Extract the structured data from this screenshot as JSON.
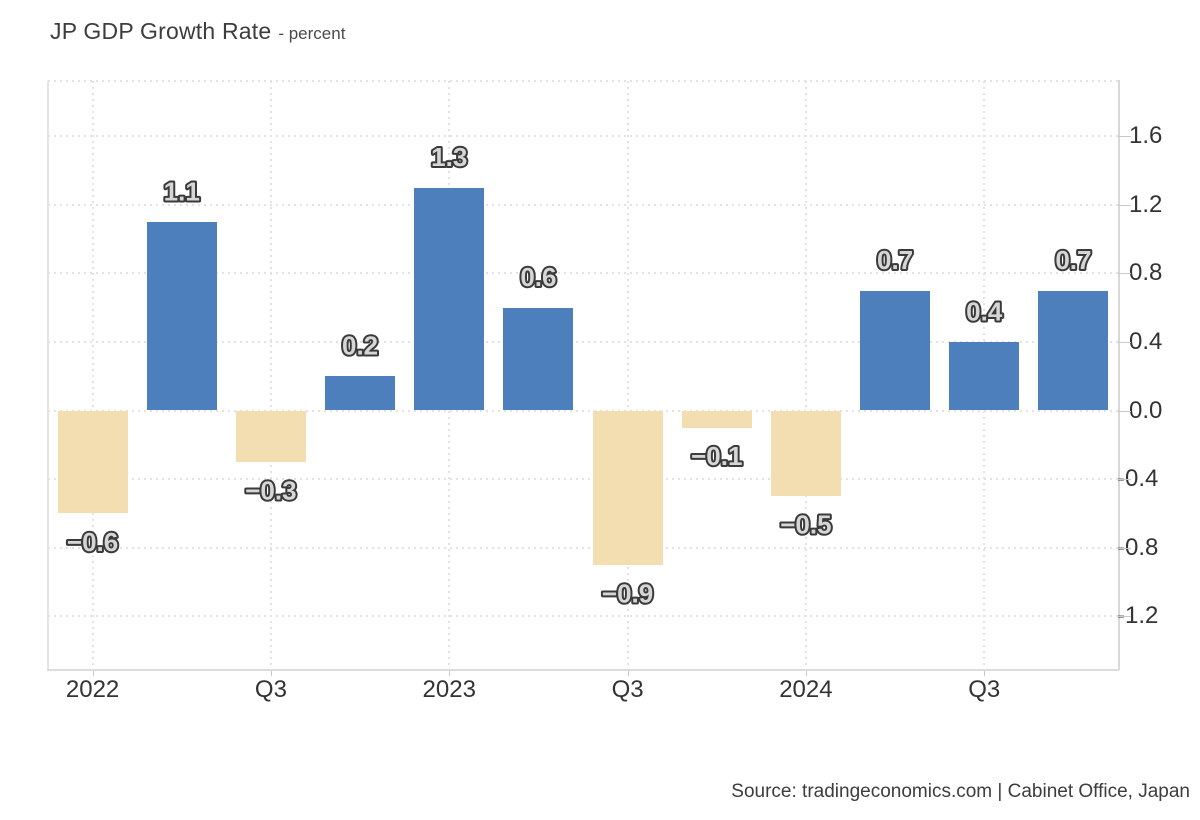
{
  "header": {
    "title": "JP GDP Growth Rate",
    "subtitle": "- percent"
  },
  "chart_data": {
    "type": "bar",
    "title": "JP GDP Growth Rate",
    "ylabel": "percent",
    "categories": [
      "2022 Q1",
      "2022 Q2",
      "2022 Q3",
      "2022 Q4",
      "2023 Q1",
      "2023 Q2",
      "2023 Q3",
      "2023 Q4",
      "2024 Q1",
      "2024 Q2",
      "2024 Q3",
      "2024 Q4"
    ],
    "values": [
      -0.6,
      1.1,
      -0.3,
      0.2,
      1.3,
      0.6,
      -0.9,
      -0.1,
      -0.5,
      0.7,
      0.4,
      0.7
    ],
    "bar_labels": [
      "−0.6",
      "1.1",
      "−0.3",
      "0.2",
      "1.3",
      "0.6",
      "−0.9",
      "−0.1",
      "−0.5",
      "0.7",
      "0.4",
      "0.7"
    ],
    "x_ticks": [
      {
        "label": "2022",
        "slot": 0
      },
      {
        "label": "Q3",
        "slot": 2
      },
      {
        "label": "2023",
        "slot": 4
      },
      {
        "label": "Q3",
        "slot": 6
      },
      {
        "label": "2024",
        "slot": 8
      },
      {
        "label": "Q3",
        "slot": 10
      }
    ],
    "y_ticks": [
      1.6,
      1.2,
      0.8,
      0.4,
      0.0,
      -0.4,
      -0.8,
      -1.2
    ],
    "y_tick_labels": [
      "1.6",
      "1.2",
      "0.8",
      "0.4",
      "0.0",
      "-0.4",
      "-0.8",
      "-1.2"
    ],
    "ylim": [
      -1.51,
      1.92
    ],
    "grid": "dotted",
    "legend": "none",
    "colors": {
      "positive": "#4d7fbc",
      "negative": "#f3deb2",
      "label_fill": "#d6d6d6",
      "label_stroke": "#3a3a3a",
      "axis_text": "#333333"
    }
  },
  "footer": {
    "source": "Source: tradingeconomics.com | Cabinet Office, Japan"
  }
}
